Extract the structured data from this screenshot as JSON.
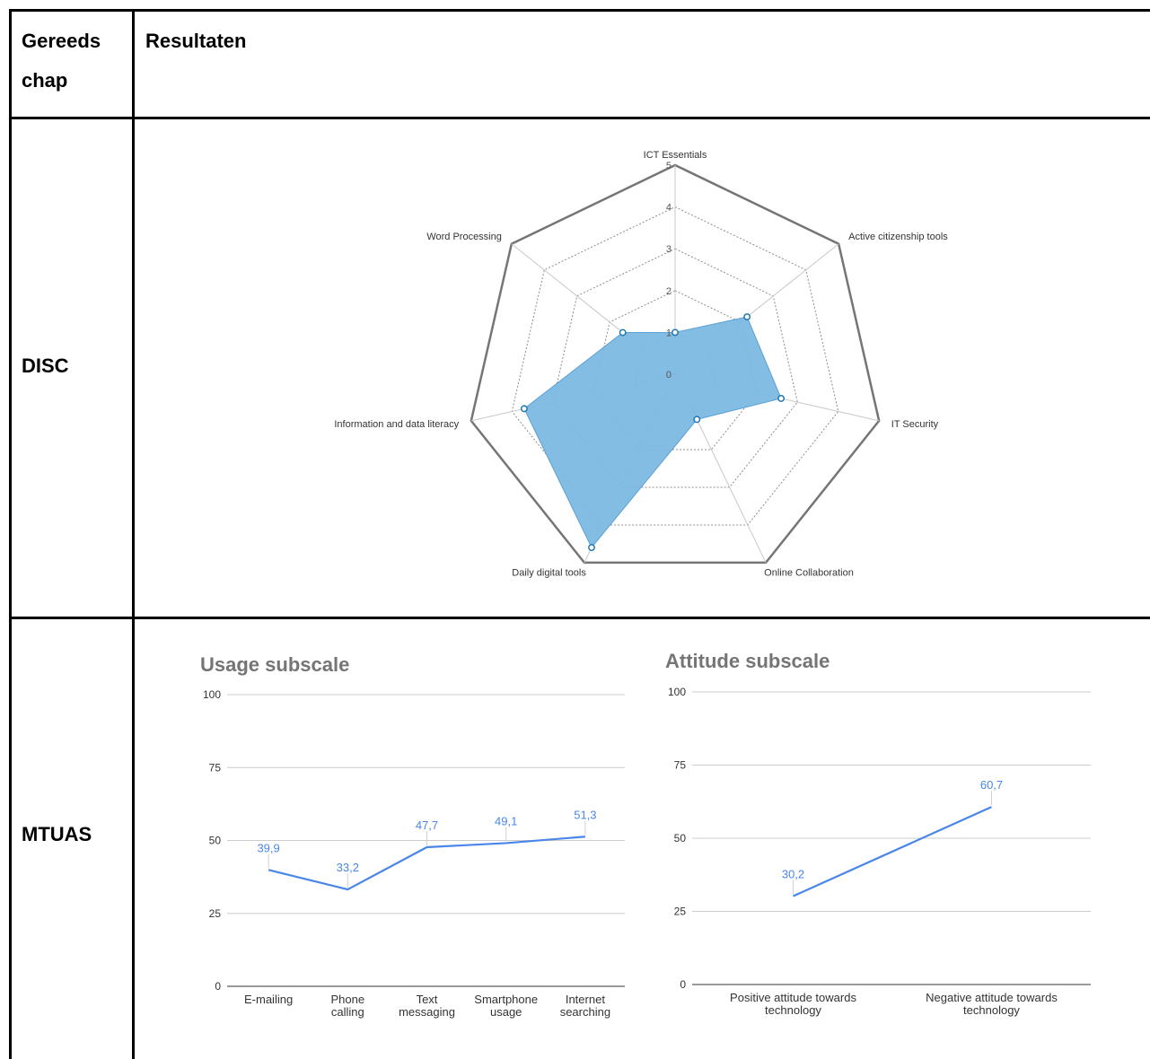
{
  "table": {
    "header_tool": "Gereeds\nchap",
    "header_tool_line1": "Gereeds",
    "header_tool_line2": "chap",
    "header_results": "Resultaten",
    "row1_label": "DISC",
    "row2_label": "MTUAS"
  },
  "chart_data": [
    {
      "type": "radar",
      "title": "",
      "axes": [
        "ICT Essentials",
        "Active citizenship tools",
        "IT Security",
        "Online Collaboration",
        "Daily digital tools",
        "Information and data literacy",
        "Word Processing"
      ],
      "values": [
        1.0,
        2.2,
        2.6,
        1.2,
        4.6,
        3.7,
        1.6
      ],
      "rticks": [
        "0",
        "1",
        "2",
        "3",
        "4",
        "5"
      ],
      "rmax": 5,
      "color": "#7db9e1",
      "stroke": "#1f77b4"
    },
    {
      "type": "line",
      "title": "Usage subscale",
      "categories": [
        [
          "E-mailing"
        ],
        [
          "Phone",
          "calling"
        ],
        [
          "Text",
          "messaging"
        ],
        [
          "Smartphone",
          "usage"
        ],
        [
          "Internet",
          "searching"
        ]
      ],
      "values": [
        39.9,
        33.2,
        47.7,
        49.1,
        51.3
      ],
      "value_labels": [
        "39,9",
        "33,2",
        "47,7",
        "49,1",
        "51,3"
      ],
      "yticks": [
        "0",
        "25",
        "50",
        "75",
        "100"
      ],
      "ylim": [
        0,
        100
      ],
      "color": "#4a86e8",
      "grid": true
    },
    {
      "type": "line",
      "title": "Attitude subscale",
      "categories": [
        [
          "Positive attitude towards",
          "technology"
        ],
        [
          "Negative attitude towards",
          "technology"
        ]
      ],
      "values": [
        30.2,
        60.7
      ],
      "value_labels": [
        "30,2",
        "60,7"
      ],
      "yticks": [
        "0",
        "25",
        "50",
        "75",
        "100"
      ],
      "ylim": [
        0,
        100
      ],
      "color": "#4a86e8",
      "grid": true
    }
  ]
}
